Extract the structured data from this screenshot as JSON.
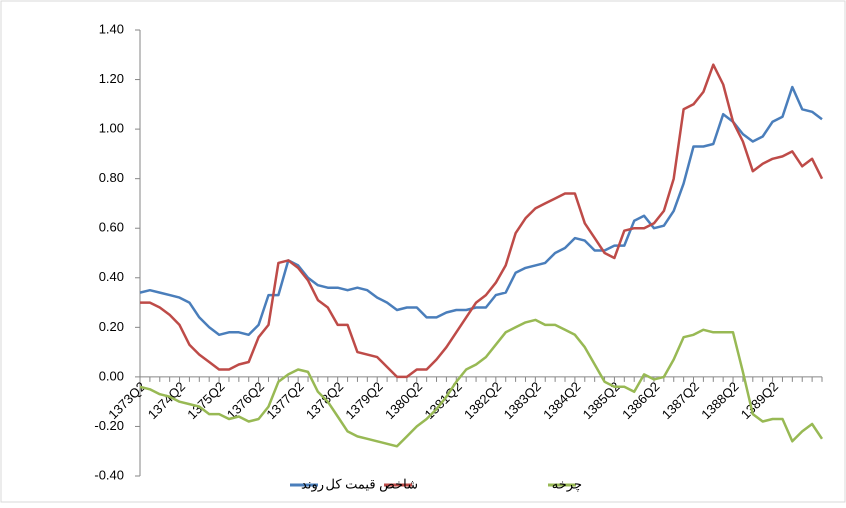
{
  "chart_data": {
    "type": "line",
    "categories": [
      "1373Q2",
      null,
      null,
      null,
      "1374Q2",
      null,
      null,
      null,
      "1375Q2",
      null,
      null,
      null,
      "1376Q2",
      null,
      null,
      null,
      "1377Q2",
      null,
      null,
      null,
      "1378Q2",
      null,
      null,
      null,
      "1379Q2",
      null,
      null,
      null,
      "1380Q2",
      null,
      null,
      null,
      "1381Q2",
      null,
      null,
      null,
      "1382Q2",
      null,
      null,
      null,
      "1383Q2",
      null,
      null,
      null,
      "1384Q2",
      null,
      null,
      null,
      "1385Q2",
      null,
      null,
      null,
      "1386Q2",
      null,
      null,
      null,
      "1387Q2",
      null,
      null,
      null,
      "1388Q2",
      null,
      null,
      null,
      "1389Q2",
      null,
      null,
      null,
      null,
      null
    ],
    "series": [
      {
        "name": "روند",
        "color": "#4a7ebb",
        "values": [
          0.34,
          0.35,
          0.34,
          0.33,
          0.32,
          0.3,
          0.24,
          0.2,
          0.17,
          0.18,
          0.18,
          0.17,
          0.21,
          0.33,
          0.33,
          0.47,
          0.45,
          0.4,
          0.37,
          0.36,
          0.36,
          0.35,
          0.36,
          0.35,
          0.32,
          0.3,
          0.27,
          0.28,
          0.28,
          0.24,
          0.24,
          0.26,
          0.27,
          0.27,
          0.28,
          0.28,
          0.33,
          0.34,
          0.42,
          0.44,
          0.45,
          0.46,
          0.5,
          0.52,
          0.56,
          0.55,
          0.51,
          0.51,
          0.53,
          0.53,
          0.63,
          0.65,
          0.6,
          0.61,
          0.67,
          0.78,
          0.93,
          0.93,
          0.94,
          1.06,
          1.03,
          0.98,
          0.95,
          0.97,
          1.03,
          1.05,
          1.17,
          1.08,
          1.07,
          1.04
        ]
      },
      {
        "name": "شاخص قیمت کل",
        "color": "#be4b48",
        "values": [
          0.3,
          0.3,
          0.28,
          0.25,
          0.21,
          0.13,
          0.09,
          0.06,
          0.03,
          0.03,
          0.05,
          0.06,
          0.16,
          0.21,
          0.46,
          0.47,
          0.44,
          0.39,
          0.31,
          0.28,
          0.21,
          0.21,
          0.1,
          0.09,
          0.08,
          0.04,
          0.0,
          0.0,
          0.03,
          0.03,
          0.07,
          0.12,
          0.18,
          0.24,
          0.3,
          0.33,
          0.38,
          0.45,
          0.58,
          0.64,
          0.68,
          0.7,
          0.72,
          0.74,
          0.74,
          0.62,
          0.56,
          0.5,
          0.48,
          0.59,
          0.6,
          0.6,
          0.62,
          0.67,
          0.8,
          1.08,
          1.1,
          1.15,
          1.26,
          1.18,
          1.03,
          0.95,
          0.83,
          0.86,
          0.88,
          0.89,
          0.91,
          0.85,
          0.88,
          0.8
        ]
      },
      {
        "name": "چرخه",
        "color": "#98b954",
        "values": [
          -0.04,
          -0.05,
          -0.07,
          -0.08,
          -0.1,
          -0.11,
          -0.12,
          -0.15,
          -0.15,
          -0.17,
          -0.16,
          -0.18,
          -0.17,
          -0.12,
          -0.02,
          0.01,
          0.03,
          0.02,
          -0.06,
          -0.1,
          -0.16,
          -0.22,
          -0.24,
          -0.25,
          -0.26,
          -0.27,
          -0.28,
          -0.24,
          -0.2,
          -0.17,
          -0.13,
          -0.08,
          -0.02,
          0.03,
          0.05,
          0.08,
          0.13,
          0.18,
          0.2,
          0.22,
          0.23,
          0.21,
          0.21,
          0.19,
          0.17,
          0.12,
          0.05,
          -0.02,
          -0.04,
          -0.04,
          -0.06,
          0.01,
          -0.01,
          0.0,
          0.07,
          0.16,
          0.17,
          0.19,
          0.18,
          0.18,
          0.18,
          0.02,
          -0.15,
          -0.18,
          -0.17,
          -0.17,
          -0.26,
          -0.22,
          -0.19,
          -0.25
        ]
      }
    ],
    "ylim": [
      -0.4,
      1.4
    ],
    "yticks": [
      {
        "value": -0.4,
        "label": "-0.40"
      },
      {
        "value": -0.2,
        "label": "-0.20"
      },
      {
        "value": 0,
        "label": "0.00"
      },
      {
        "value": 0.2,
        "label": "0.20"
      },
      {
        "value": 0.4,
        "label": "0.40"
      },
      {
        "value": 0.6,
        "label": "0.60"
      },
      {
        "value": 0.8,
        "label": "0.80"
      },
      {
        "value": 1.0,
        "label": "1.00"
      },
      {
        "value": 1.2,
        "label": "1.20"
      },
      {
        "value": 1.4,
        "label": "1.40"
      }
    ],
    "grid": false,
    "legend": "bottom"
  }
}
